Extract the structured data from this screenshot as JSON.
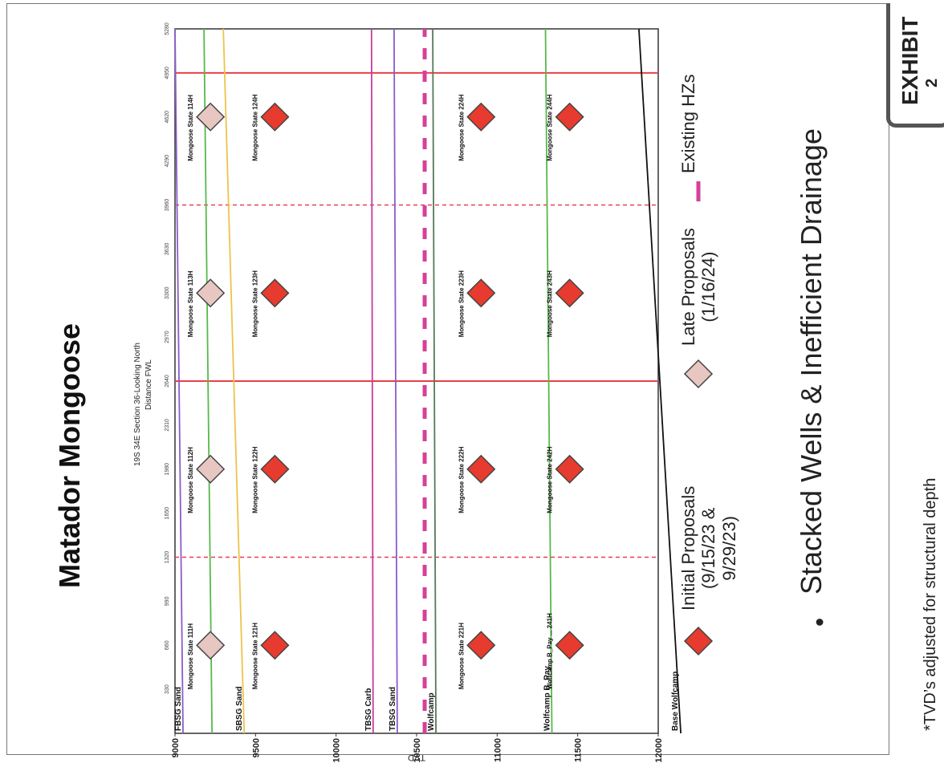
{
  "title": "Matador Mongoose",
  "subtitle_line1": "19S 34E Section 36-Looking North",
  "subtitle_line2": "Distance FWL",
  "legend": {
    "initial": [
      "Initial Proposals",
      "(9/15/23 &",
      "9/29/23)"
    ],
    "late": [
      "Late Proposals",
      "(1/16/24)"
    ],
    "existing": "Existing HZs"
  },
  "bullet_symbol": "•",
  "bullet_text": "Stacked Wells & Inefficient Drainage",
  "footnote": "*TVD’s adjusted for structural depth",
  "exhibit": {
    "label": "EXHIBIT",
    "mark": "2"
  },
  "colors": {
    "initial": "#e63b2e",
    "late": "#e8c6c2",
    "existing": "#d6409a",
    "section_line": "#e8404a",
    "section_dash": "#e8404a"
  },
  "chart_data": {
    "type": "scatter",
    "xlabel": "Distance FWL",
    "ylabel": "TVD",
    "xlim": [
      0,
      5280
    ],
    "ylim": [
      12000,
      9000
    ],
    "x_ticks": [
      "330",
      "660",
      "990",
      "1320",
      "1650",
      "1980",
      "2310",
      "2640",
      "2970",
      "3300",
      "3630",
      "3960",
      "4290",
      "4620",
      "4950",
      "5280"
    ],
    "y_ticks": [
      9000,
      9500,
      10000,
      10500,
      11000,
      11500,
      12000
    ],
    "section_lines": [
      2640,
      4950
    ],
    "quarter_lines": [
      1320,
      3960
    ],
    "formations": [
      {
        "name": "FBSG Sand",
        "color": "#8a5cc9",
        "y_start": 9050,
        "y_end": 9000,
        "label_x": 100
      },
      {
        "name": "",
        "color": "#56b94b",
        "y_start": 9230,
        "y_end": 9180,
        "label_x": null
      },
      {
        "name": "SBSG Sand",
        "color": "#eec34a",
        "y_start": 9430,
        "y_end": 9300,
        "label_x": 100
      },
      {
        "name": "TBSG Carb",
        "color": "#c83b9f",
        "y_start": 10230,
        "y_end": 10220,
        "label_x": 100
      },
      {
        "name": "TBSG Sand",
        "color": "#8a5cc9",
        "y_start": 10380,
        "y_end": 10360,
        "label_x": 100
      },
      {
        "name": "Wolfcamp",
        "color": "#56795a",
        "y_start": 10620,
        "y_end": 10600,
        "label_x": 100
      },
      {
        "name": "Wolfcamp B_Pay",
        "color": "#56b94b",
        "y_start": 11340,
        "y_end": 11300,
        "label_x": 100
      },
      {
        "name": "Base Wolfcamp",
        "color": "#111111",
        "y_start": 12140,
        "y_end": 11880,
        "label_x": 150
      }
    ],
    "existing_hz": {
      "tvd": 10550
    },
    "series": [
      {
        "name": "Initial Proposals",
        "marker": "diamond",
        "points": [
          {
            "label": "Mongoose State 121H",
            "x": 660,
            "y": 9620
          },
          {
            "label": "Mongoose State 122H",
            "x": 1980,
            "y": 9620
          },
          {
            "label": "Mongoose State 123H",
            "x": 3300,
            "y": 9620
          },
          {
            "label": "Mongoose State 124H",
            "x": 4620,
            "y": 9620
          },
          {
            "label": "Mongoose State 221H",
            "x": 660,
            "y": 10900
          },
          {
            "label": "Mongoose State 222H",
            "x": 1980,
            "y": 10900
          },
          {
            "label": "Mongoose State 223H",
            "x": 3300,
            "y": 10900
          },
          {
            "label": "Mongoose State 224H",
            "x": 4620,
            "y": 10900
          },
          {
            "label": "Wolfcamp B_Pay ... 241H",
            "x": 660,
            "y": 11450
          },
          {
            "label": "Mongoose State 242H",
            "x": 1980,
            "y": 11450
          },
          {
            "label": "Mongoose State 243H",
            "x": 3300,
            "y": 11450
          },
          {
            "label": "Mongoose State 244H",
            "x": 4620,
            "y": 11450
          }
        ]
      },
      {
        "name": "Late Proposals",
        "marker": "diamond",
        "points": [
          {
            "label": "Mongoose State 111H",
            "x": 660,
            "y": 9220
          },
          {
            "label": "Mongoose State 112H",
            "x": 1980,
            "y": 9220
          },
          {
            "label": "Mongoose State 113H",
            "x": 3300,
            "y": 9220
          },
          {
            "label": "Mongoose State 114H",
            "x": 4620,
            "y": 9220
          }
        ]
      }
    ]
  }
}
